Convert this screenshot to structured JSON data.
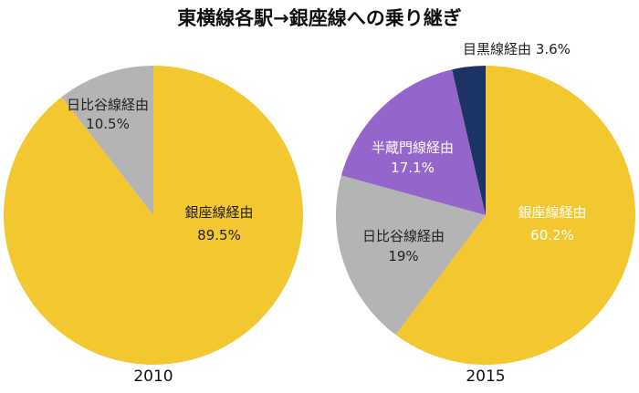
{
  "chart_data": {
    "type": "pie",
    "title": "東横線各駅→銀座線への乗り継ぎ",
    "colors": {
      "ginza": "#F2C72F",
      "hibiya": "#B4B4B4",
      "hanzomon": "#9466CC",
      "meguro": "#1C3366"
    },
    "charts": [
      {
        "year": "2010",
        "slices": [
          {
            "label": "銀座線経由",
            "value": 89.5,
            "display": "89.5%",
            "color_key": "ginza"
          },
          {
            "label": "日比谷線経由",
            "value": 10.5,
            "display": "10.5%",
            "color_key": "hibiya"
          }
        ]
      },
      {
        "year": "2015",
        "slices": [
          {
            "label": "銀座線経由",
            "value": 60.2,
            "display": "60.2%",
            "color_key": "ginza"
          },
          {
            "label": "日比谷線経由",
            "value": 19,
            "display": "19%",
            "color_key": "hibiya"
          },
          {
            "label": "半蔵門線経由",
            "value": 17.1,
            "display": "17.1%",
            "color_key": "hanzomon"
          },
          {
            "label": "目黒線経由",
            "value": 3.6,
            "display": "3.6%",
            "color_key": "meguro"
          }
        ]
      }
    ]
  }
}
